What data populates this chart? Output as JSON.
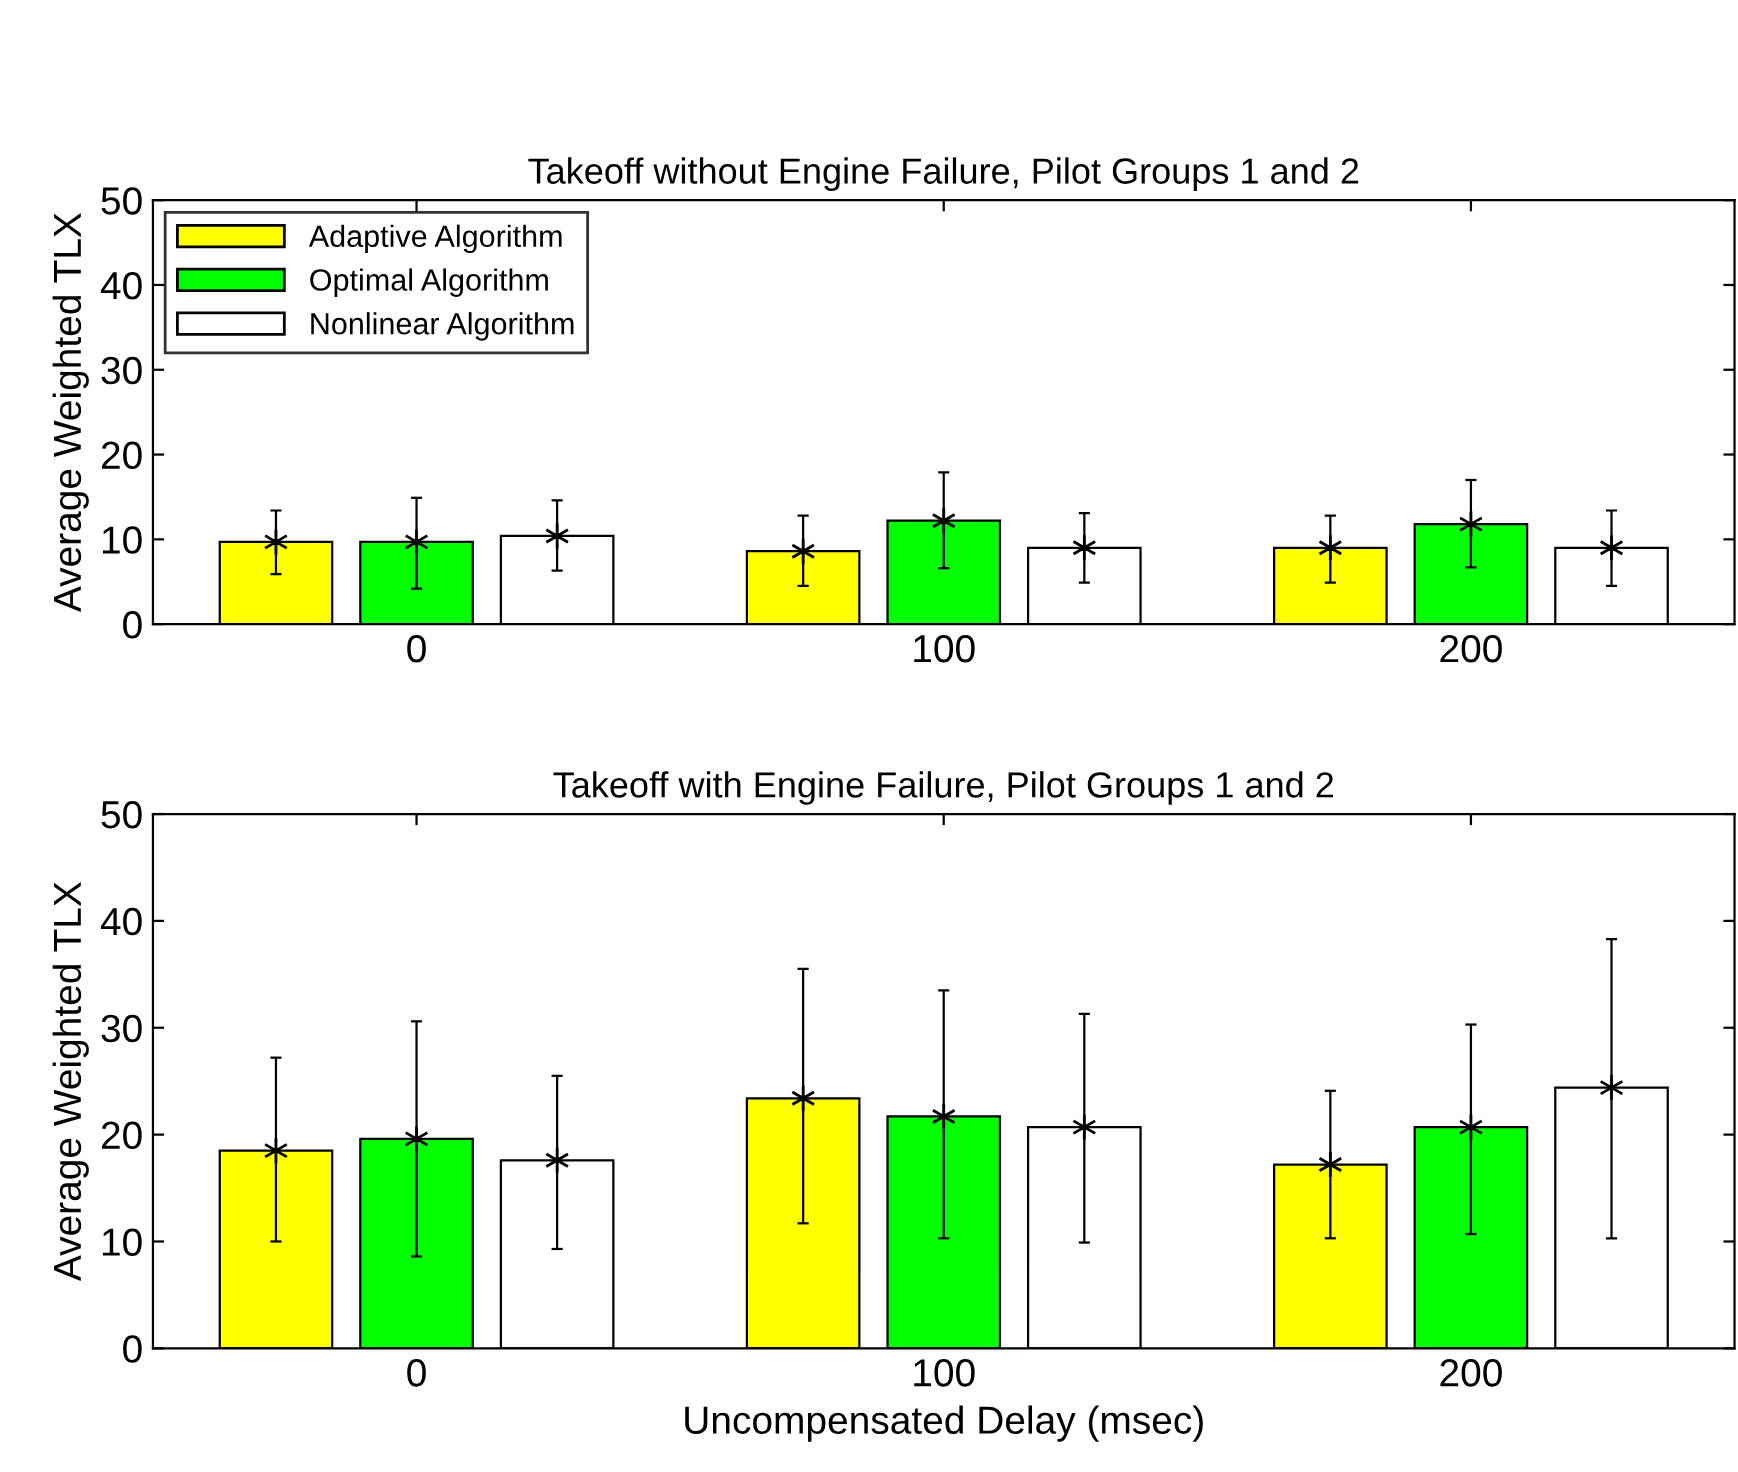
{
  "chart_data": [
    {
      "type": "bar",
      "title": "Takeoff without Engine Failure, Pilot Groups 1 and 2",
      "ylabel": "Average Weighted TLX",
      "categories": [
        "0",
        "100",
        "200"
      ],
      "ylim": [
        0,
        50
      ],
      "yticks": [
        0,
        10,
        20,
        30,
        40,
        50
      ],
      "legend": "top left",
      "marker": "cross",
      "grid": false,
      "series": [
        {
          "name": "Adaptive Algorithm",
          "color": "#ffff00",
          "values": [
            9.7,
            8.6,
            9.0
          ],
          "errors": [
            [
              5.9,
              13.4
            ],
            [
              4.5,
              12.8
            ],
            [
              4.9,
              12.8
            ]
          ]
        },
        {
          "name": "Optimal Algorithm",
          "color": "#00ff00",
          "values": [
            9.7,
            12.2,
            11.8
          ],
          "errors": [
            [
              4.2,
              14.9
            ],
            [
              6.6,
              17.9
            ],
            [
              6.7,
              17.0
            ]
          ]
        },
        {
          "name": "Nonlinear Algorithm",
          "color": "#ffffff",
          "values": [
            10.4,
            9.0,
            9.0
          ],
          "errors": [
            [
              6.3,
              14.6
            ],
            [
              4.9,
              13.1
            ],
            [
              4.5,
              13.4
            ]
          ]
        },
        {
          "type": "scatter",
          "color": "#000000",
          "x": [
            "0",
            "100",
            "200"
          ],
          "values": [
            9.7,
            8.6,
            9.0
          ]
        },
        {
          "type": "scatter",
          "color": "#000000",
          "x": [
            "0",
            "100",
            "200"
          ],
          "values": [
            9.7,
            12.2,
            11.8
          ]
        },
        {
          "type": "scatter",
          "color": "#000000",
          "x": [
            "0",
            "100",
            "200"
          ],
          "values": [
            10.4,
            9.0,
            9.0
          ]
        }
      ]
    },
    {
      "type": "bar",
      "title": "Takeoff with Engine Failure, Pilot Groups 1 and 2",
      "ylabel": "Average Weighted TLX",
      "xlabel": "Uncompensated Delay (msec)",
      "categories": [
        "0",
        "100",
        "200"
      ],
      "ylim": [
        0,
        50
      ],
      "yticks": [
        0,
        10,
        20,
        30,
        40,
        50
      ],
      "legend": false,
      "marker": "cross",
      "grid": false,
      "series": [
        {
          "color": "#ffff00",
          "values": [
            18.5,
            23.4,
            17.2
          ],
          "errors": [
            [
              10.0,
              27.2
            ],
            [
              11.7,
              35.5
            ],
            [
              10.3,
              24.1
            ]
          ]
        },
        {
          "color": "#00ff00",
          "values": [
            19.6,
            21.7,
            20.7
          ],
          "errors": [
            [
              8.6,
              30.6
            ],
            [
              10.3,
              33.5
            ],
            [
              10.7,
              30.3
            ]
          ]
        },
        {
          "color": "#ffffff",
          "values": [
            17.6,
            20.7,
            24.4
          ],
          "errors": [
            [
              9.3,
              25.5
            ],
            [
              9.9,
              31.3
            ],
            [
              10.3,
              38.3
            ]
          ]
        },
        {
          "type": "scatter",
          "color": "#000000",
          "x": [
            "0",
            "100",
            "200"
          ],
          "values": [
            18.5,
            23.4,
            17.2
          ]
        },
        {
          "type": "scatter",
          "color": "#000000",
          "x": [
            "0",
            "100",
            "200"
          ],
          "values": [
            19.6,
            21.7,
            20.7
          ]
        },
        {
          "type": "scatter",
          "color": "#000000",
          "x": [
            "0",
            "100",
            "200"
          ],
          "values": [
            17.6,
            20.7,
            24.4
          ]
        }
      ]
    }
  ]
}
